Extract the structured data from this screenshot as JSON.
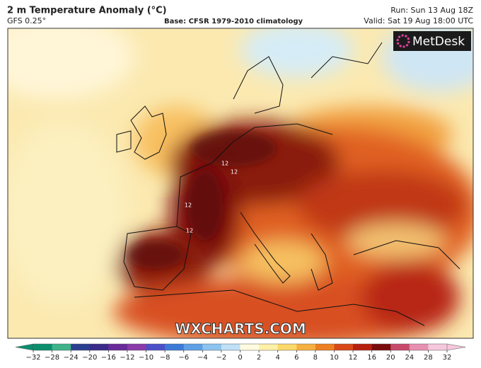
{
  "header": {
    "title": "2 m Temperature Anomaly (°C)",
    "model": "GFS 0.25°",
    "base": "Base: CFSR 1979-2010 climatology",
    "run": "Run: Sun 13 Aug 18Z",
    "valid": "Valid: Sat 19 Aug 18:00 UTC"
  },
  "map": {
    "logo": "MetDesk",
    "watermark": "WXCHARTS.COM",
    "contour_labels": [
      "12",
      "12",
      "12",
      "12"
    ]
  },
  "colorbar": {
    "ticks": [
      {
        "value": -32,
        "label": "−32"
      },
      {
        "value": -28,
        "label": "−28"
      },
      {
        "value": -24,
        "label": "−24"
      },
      {
        "value": -20,
        "label": "−20"
      },
      {
        "value": -16,
        "label": "−16"
      },
      {
        "value": -12,
        "label": "−12"
      },
      {
        "value": -10,
        "label": "−10"
      },
      {
        "value": -8,
        "label": "−8"
      },
      {
        "value": -6,
        "label": "−6"
      },
      {
        "value": -4,
        "label": "−4"
      },
      {
        "value": -2,
        "label": "−2"
      },
      0,
      2,
      4,
      6,
      8,
      10,
      12,
      16,
      20,
      24,
      28,
      32
    ],
    "colors": [
      "#0c8f6e",
      "#3fb38a",
      "#2a3f8f",
      "#3a2a8a",
      "#6a2a9a",
      "#8a3aaa",
      "#4b4fc8",
      "#3d7ad8",
      "#5ea0e6",
      "#8cc4f0",
      "#bfe0f6",
      "#fffbe0",
      "#fff0a8",
      "#fbd86a",
      "#f6b040",
      "#ec8022",
      "#d84818",
      "#b8200e",
      "#7a0c0c",
      "#c84a6a",
      "#e890b0",
      "#f6c8dc"
    ]
  }
}
